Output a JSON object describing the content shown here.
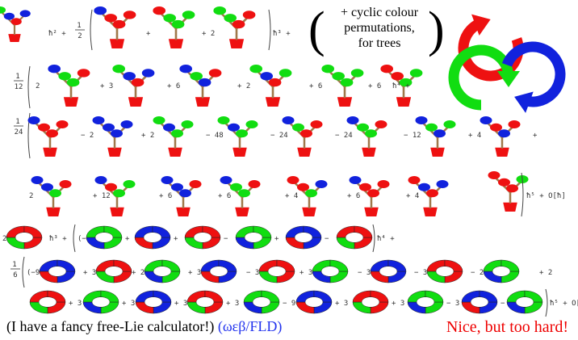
{
  "note": {
    "line1": "+ cyclic colour",
    "line2": "permutations,",
    "line3": "for trees"
  },
  "captions": {
    "left_text": "(I have a fancy free-Lie calculator!)",
    "left_link": "(ωεβ/FLD)",
    "right_text": "Nice, but too hard!"
  },
  "colors": {
    "red": "#ee1111",
    "green": "#11dd11",
    "blue": "#1122dd",
    "trunk": "#a0784a",
    "pot": "#ee1111"
  },
  "formula": {
    "row1": {
      "terms": [
        "ħ² +",
        "1",
        "2",
        "+",
        "+ 2",
        "ħ³ +"
      ]
    },
    "row2": {
      "fraction_num": "1",
      "fraction_den": "12",
      "coefs": [
        "2",
        "+ 3",
        "+ 6",
        "+ 2",
        "+ 6",
        "+ 6"
      ],
      "tail": "ħ⁴ +"
    },
    "row3": {
      "fraction_num": "1",
      "fraction_den": "24",
      "coefs": [
        "",
        "− 2",
        "+ 2",
        "− 48",
        "− 24",
        "− 24",
        "− 12",
        "+ 4",
        "+"
      ]
    },
    "row4": {
      "coefs": [
        "2",
        "+ 12",
        "+ 6",
        "+ 6",
        "+ 4",
        "+ 6",
        "+ 4"
      ],
      "tail": "ħ⁵ + O[ħ]"
    },
    "row5": {
      "lead": "2",
      "coefs": [
        "ħ³ +",
        "(−",
        "+",
        "+",
        "−",
        "+",
        "−"
      ],
      "tail": "ħ⁴ +"
    },
    "row6": {
      "fraction_num": "1",
      "fraction_den": "6",
      "coefs": [
        "(−9",
        "+ 3",
        "+ 2",
        "+ 3",
        "− 3",
        "+ 3",
        "− 3",
        "− 3",
        "− 2",
        "+ 2"
      ]
    },
    "row7": {
      "coefs": [
        "+ 3",
        "+ 3",
        "+ 3",
        "+ 3",
        "− 9",
        "+ 3",
        "+ 3",
        "− 3",
        "− 9"
      ],
      "tail": "ħ⁵ + O[ħ]"
    }
  }
}
